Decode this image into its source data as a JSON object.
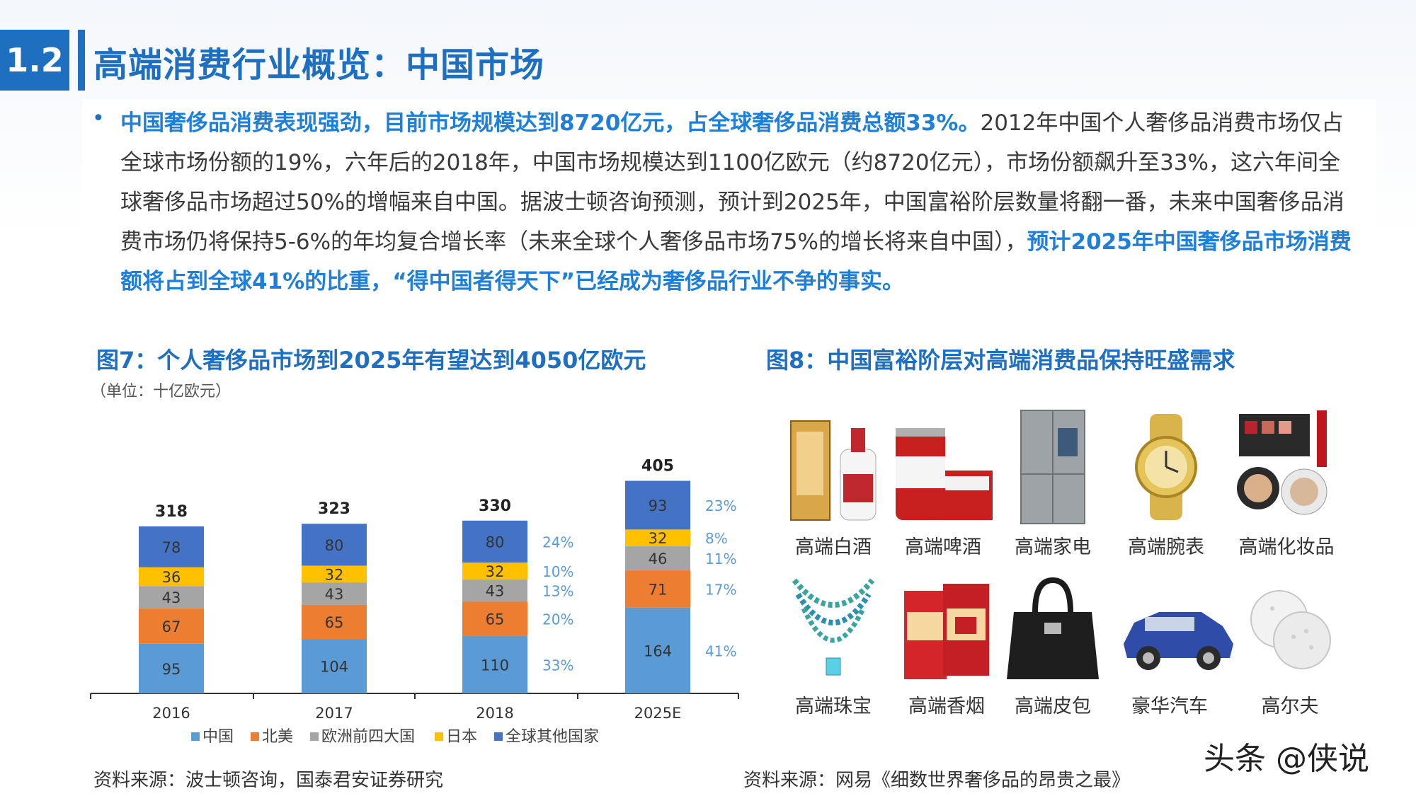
{
  "header": {
    "section_number": "1.2",
    "title": "高端消费行业概览：中国市场"
  },
  "summary": {
    "bullet": "•",
    "highlight_start": "中国奢侈品消费表现强劲，目前市场规模达到8720亿元，占全球奢侈品消费总额33%。",
    "body": "2012年中国个人奢侈品消费市场仅占全球市场份额的19%，六年后的2018年，中国市场规模达到1100亿欧元（约8720亿元），市场份额飙升至33%，这六年间全球奢侈品市场超过50%的增幅来自中国。据波士顿咨询预测，预计到2025年，中国富裕阶层数量将翻一番，未来中国奢侈品消费市场仍将保持5-6%的年均复合增长率（未来全球个人奢侈品市场75%的增长将来自中国），",
    "highlight_end": "预计2025年中国奢侈品市场消费额将占到全球41%的比重，“得中国者得天下”已经成为奢侈品行业不争的事实。"
  },
  "figure7": {
    "caption": "图7：个人奢侈品市场到2025年有望达到4050亿欧元",
    "source": "资料来源：波士顿咨询，国泰君安证券研究"
  },
  "figure8": {
    "caption": "图8：中国富裕阶层对高端消费品保持旺盛需求",
    "source": "资料来源：网易《细数世界奢侈品的昂贵之最》",
    "products": [
      {
        "label": "高端白酒",
        "icon": "baijiu-icon"
      },
      {
        "label": "高端啤酒",
        "icon": "beer-icon"
      },
      {
        "label": "高端家电",
        "icon": "refrigerator-icon"
      },
      {
        "label": "高端腕表",
        "icon": "watch-icon"
      },
      {
        "label": "高端化妆品",
        "icon": "cosmetics-icon"
      },
      {
        "label": "高端珠宝",
        "icon": "necklace-icon"
      },
      {
        "label": "高端香烟",
        "icon": "cigarettes-icon"
      },
      {
        "label": "高端皮包",
        "icon": "handbag-icon"
      },
      {
        "label": "豪华汽车",
        "icon": "car-icon"
      },
      {
        "label": "高尔夫",
        "icon": "golf-ball-icon"
      }
    ]
  },
  "watermark": "头条 @侠说",
  "colors": {
    "brand_blue": "#1f6fc0",
    "china": "#5b9bd5",
    "north_america": "#ed7d31",
    "europe4": "#a5a5a5",
    "japan": "#ffc000",
    "rest_of_world": "#4472c4"
  },
  "chart_data": {
    "type": "bar",
    "stacked": true,
    "unit_label": "（单位：十亿欧元）",
    "categories": [
      "2016",
      "2017",
      "2018",
      "2025E"
    ],
    "totals": [
      318,
      323,
      330,
      405
    ],
    "series": [
      {
        "name": "中国",
        "values": [
          95,
          104,
          110,
          164
        ],
        "color": "#5b9bd5"
      },
      {
        "name": "北美",
        "values": [
          67,
          65,
          65,
          71
        ],
        "color": "#ed7d31"
      },
      {
        "name": "欧洲前四大国",
        "values": [
          43,
          43,
          43,
          46
        ],
        "color": "#a5a5a5"
      },
      {
        "name": "日本",
        "values": [
          36,
          32,
          32,
          32
        ],
        "color": "#ffc000"
      },
      {
        "name": "全球其他国家",
        "values": [
          78,
          80,
          80,
          93
        ],
        "color": "#4472c4"
      }
    ],
    "shares": {
      "2018": [
        "33%",
        "20%",
        "13%",
        "10%",
        "24%"
      ],
      "2025E": [
        "41%",
        "17%",
        "11%",
        "8%",
        "23%"
      ]
    },
    "legend_position": "bottom",
    "grid": false
  }
}
